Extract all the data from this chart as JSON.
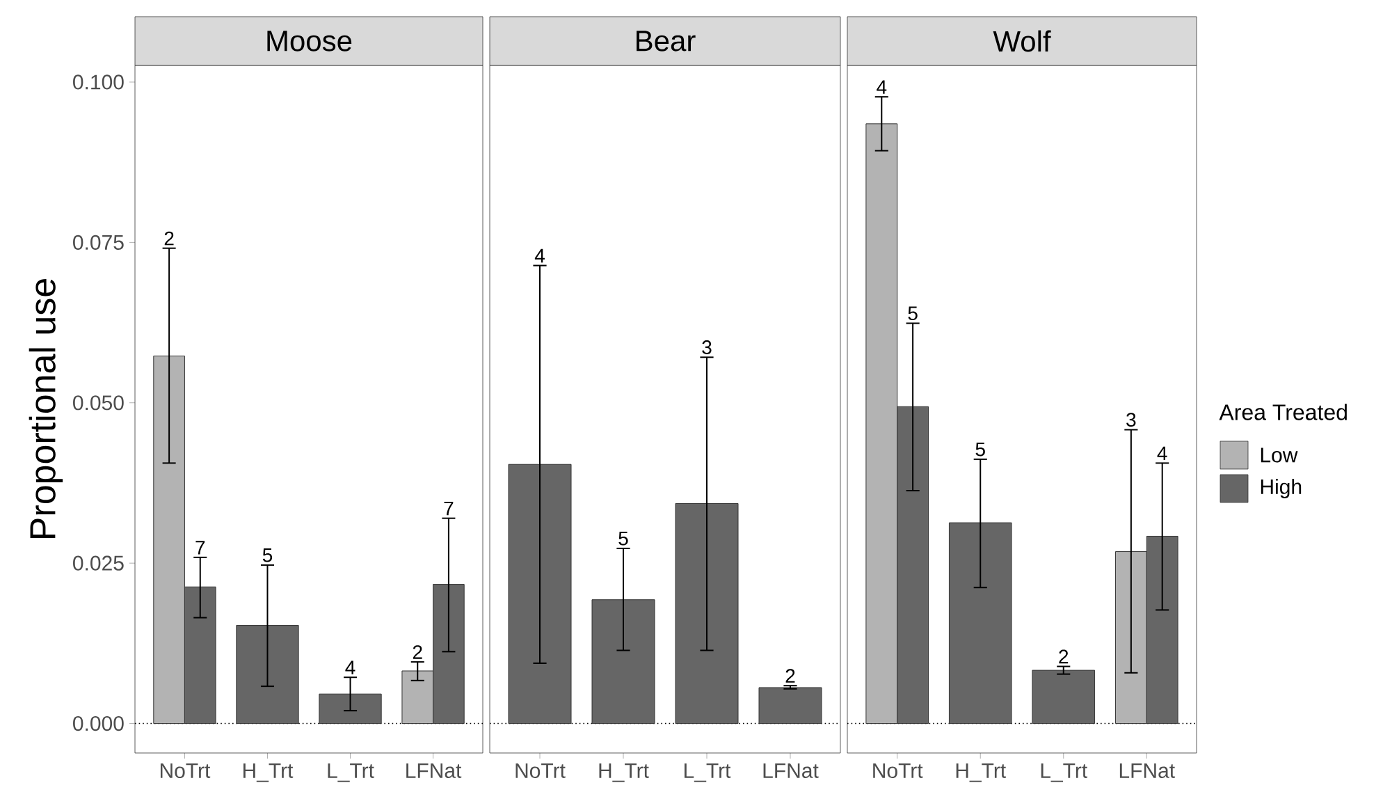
{
  "chart_data": [
    {
      "type": "bar",
      "title": "Moose",
      "ylabel": "Proportional use",
      "categories": [
        "NoTrt",
        "H_Trt",
        "L_Trt",
        "LFNat"
      ],
      "series": [
        {
          "color": "#b3b3b3",
          "values": [
            0.0573,
            null,
            null,
            0.0082
          ],
          "errors": [
            [
              0.0406,
              0.0741
            ],
            null,
            null,
            [
              0.0067,
              0.0096
            ]
          ]
        },
        {
          "color": "#666666",
          "values": [
            0.0213,
            0.0153,
            0.0046,
            0.0217
          ],
          "errors": [
            [
              0.0165,
              0.0259
            ],
            [
              0.0058,
              0.0247
            ],
            [
              0.002,
              0.0072
            ],
            [
              0.0112,
              0.032
            ]
          ]
        }
      ],
      "annotations": [
        "2",
        "7",
        "5",
        "4",
        "2",
        "7"
      ],
      "ylim": [
        -0.0046,
        0.1026
      ],
      "yticks": [
        {
          "value": 0,
          "label": "0.000"
        },
        {
          "value": 0.025,
          "label": "0.025"
        },
        {
          "value": 0.05,
          "label": "0.050"
        },
        {
          "value": 0.075,
          "label": "0.075"
        },
        {
          "value": 0.1,
          "label": "0.100"
        }
      ],
      "ref_lines": [
        {
          "axis": "y",
          "value": 0,
          "line_style": "dotted"
        }
      ]
    },
    {
      "type": "bar",
      "title": "Bear",
      "categories": [
        "NoTrt",
        "H_Trt",
        "L_Trt",
        "LFNat"
      ],
      "series": [
        {
          "color": "#666666",
          "values": [
            0.0404,
            0.0193,
            0.0343,
            0.0056
          ],
          "errors": [
            [
              0.0094,
              0.0714
            ],
            [
              0.0114,
              0.0273
            ],
            [
              0.0114,
              0.0571
            ],
            [
              0.0054,
              0.0059
            ]
          ]
        }
      ],
      "annotations": [
        "4",
        "5",
        "3",
        "2"
      ],
      "ylim": [
        -0.0046,
        0.1026
      ],
      "tick_labels": "x",
      "ref_lines": [
        {
          "axis": "y",
          "value": 0,
          "line_style": "dotted"
        }
      ]
    },
    {
      "type": "bar",
      "title": "Wolf",
      "legend_title": "Area Treated",
      "legend": "right",
      "categories": [
        "NoTrt",
        "H_Trt",
        "L_Trt",
        "LFNat"
      ],
      "series": [
        {
          "name": "Low",
          "color": "#b3b3b3",
          "values": [
            0.0935,
            null,
            null,
            0.0268
          ],
          "errors": [
            [
              0.0893,
              0.0977
            ],
            null,
            null,
            [
              0.0079,
              0.0458
            ]
          ]
        },
        {
          "name": "High",
          "color": "#666666",
          "values": [
            0.0494,
            0.0313,
            0.0083,
            0.0292
          ],
          "errors": [
            [
              0.0363,
              0.0624
            ],
            [
              0.0212,
              0.0412
            ],
            [
              0.0077,
              0.0089
            ],
            [
              0.0177,
              0.0406
            ]
          ]
        }
      ],
      "annotations": [
        "4",
        "5",
        "5",
        "2",
        "3",
        "4"
      ],
      "ylim": [
        -0.0046,
        0.1026
      ],
      "tick_labels": "x",
      "ref_lines": [
        {
          "axis": "y",
          "value": 0,
          "line_style": "dotted"
        }
      ]
    }
  ]
}
